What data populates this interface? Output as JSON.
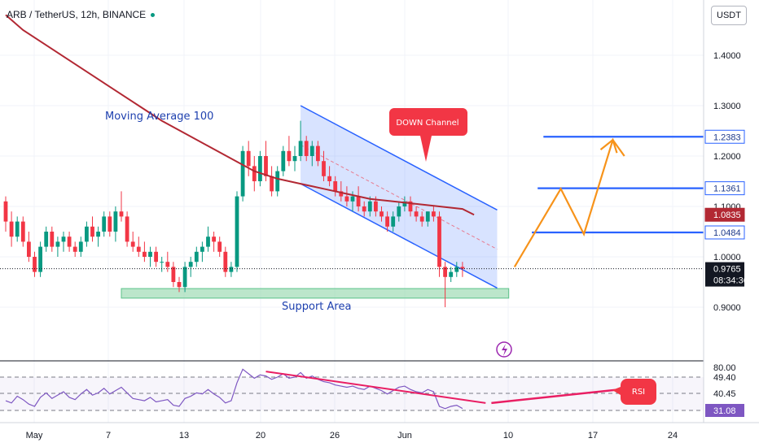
{
  "header": {
    "symbol_line": "ARB / TetherUS, 12h, BINANCE",
    "currency": "USDT"
  },
  "colors": {
    "up": "#089981",
    "down": "#f23645",
    "ma": "#b22833",
    "channel": "#2962ff",
    "level": "#2962ff",
    "projection": "#f7931a",
    "support": "#8fd6a8",
    "rsi": "#7e57c2",
    "divergence": "#e91e63"
  },
  "chart_data": {
    "type": "candlestick",
    "title": "ARB / TetherUS, 12h, BINANCE",
    "y_axis": {
      "ticks": [
        1.4,
        1.3,
        1.2,
        1.1,
        1.0,
        0.9
      ],
      "tick_labels": [
        "1.4000",
        "1.3000",
        "1.2000",
        "1.1000",
        "1.0000",
        "0.9000"
      ],
      "range": [
        0.85,
        1.48
      ]
    },
    "x_axis": {
      "tick_labels": [
        "May",
        "7",
        "13",
        "20",
        "26",
        "Jun",
        "10",
        "17",
        "24"
      ]
    },
    "candles": [
      {
        "o": 1.11,
        "h": 1.12,
        "l": 1.05,
        "c": 1.07
      },
      {
        "o": 1.07,
        "h": 1.09,
        "l": 1.02,
        "c": 1.04
      },
      {
        "o": 1.04,
        "h": 1.08,
        "l": 1.03,
        "c": 1.07
      },
      {
        "o": 1.07,
        "h": 1.08,
        "l": 1.02,
        "c": 1.03
      },
      {
        "o": 1.03,
        "h": 1.05,
        "l": 0.99,
        "c": 1.0
      },
      {
        "o": 1.0,
        "h": 1.01,
        "l": 0.96,
        "c": 0.97
      },
      {
        "o": 0.97,
        "h": 1.03,
        "l": 0.96,
        "c": 1.02
      },
      {
        "o": 1.02,
        "h": 1.06,
        "l": 1.01,
        "c": 1.05
      },
      {
        "o": 1.05,
        "h": 1.06,
        "l": 1.01,
        "c": 1.02
      },
      {
        "o": 1.02,
        "h": 1.04,
        "l": 1.0,
        "c": 1.03
      },
      {
        "o": 1.03,
        "h": 1.05,
        "l": 1.01,
        "c": 1.04
      },
      {
        "o": 1.04,
        "h": 1.05,
        "l": 1.01,
        "c": 1.02
      },
      {
        "o": 1.02,
        "h": 1.03,
        "l": 1.0,
        "c": 1.01
      },
      {
        "o": 1.01,
        "h": 1.04,
        "l": 1.0,
        "c": 1.03
      },
      {
        "o": 1.03,
        "h": 1.07,
        "l": 1.02,
        "c": 1.06
      },
      {
        "o": 1.06,
        "h": 1.08,
        "l": 1.03,
        "c": 1.04
      },
      {
        "o": 1.04,
        "h": 1.06,
        "l": 1.02,
        "c": 1.05
      },
      {
        "o": 1.05,
        "h": 1.09,
        "l": 1.04,
        "c": 1.08
      },
      {
        "o": 1.08,
        "h": 1.09,
        "l": 1.04,
        "c": 1.05
      },
      {
        "o": 1.05,
        "h": 1.1,
        "l": 1.03,
        "c": 1.09
      },
      {
        "o": 1.09,
        "h": 1.13,
        "l": 1.07,
        "c": 1.08
      },
      {
        "o": 1.08,
        "h": 1.09,
        "l": 1.02,
        "c": 1.03
      },
      {
        "o": 1.03,
        "h": 1.05,
        "l": 1.01,
        "c": 1.02
      },
      {
        "o": 1.02,
        "h": 1.04,
        "l": 1.0,
        "c": 1.01
      },
      {
        "o": 1.01,
        "h": 1.03,
        "l": 0.99,
        "c": 1.0
      },
      {
        "o": 1.0,
        "h": 1.02,
        "l": 0.98,
        "c": 1.01
      },
      {
        "o": 1.01,
        "h": 1.02,
        "l": 0.98,
        "c": 0.99
      },
      {
        "o": 0.99,
        "h": 1.0,
        "l": 0.97,
        "c": 0.99
      },
      {
        "o": 0.99,
        "h": 1.01,
        "l": 0.97,
        "c": 0.98
      },
      {
        "o": 0.98,
        "h": 0.99,
        "l": 0.94,
        "c": 0.95
      },
      {
        "o": 0.95,
        "h": 0.96,
        "l": 0.93,
        "c": 0.94
      },
      {
        "o": 0.94,
        "h": 0.99,
        "l": 0.93,
        "c": 0.98
      },
      {
        "o": 0.98,
        "h": 1.0,
        "l": 0.96,
        "c": 0.99
      },
      {
        "o": 0.99,
        "h": 1.02,
        "l": 0.98,
        "c": 1.01
      },
      {
        "o": 1.01,
        "h": 1.03,
        "l": 0.99,
        "c": 1.02
      },
      {
        "o": 1.02,
        "h": 1.06,
        "l": 1.01,
        "c": 1.04
      },
      {
        "o": 1.04,
        "h": 1.05,
        "l": 1.01,
        "c": 1.03
      },
      {
        "o": 1.03,
        "h": 1.04,
        "l": 1.0,
        "c": 1.01
      },
      {
        "o": 1.01,
        "h": 1.02,
        "l": 0.96,
        "c": 0.97
      },
      {
        "o": 0.97,
        "h": 0.99,
        "l": 0.96,
        "c": 0.98
      },
      {
        "o": 0.98,
        "h": 1.13,
        "l": 0.97,
        "c": 1.12
      },
      {
        "o": 1.12,
        "h": 1.22,
        "l": 1.11,
        "c": 1.21
      },
      {
        "o": 1.21,
        "h": 1.23,
        "l": 1.16,
        "c": 1.18
      },
      {
        "o": 1.18,
        "h": 1.2,
        "l": 1.13,
        "c": 1.15
      },
      {
        "o": 1.15,
        "h": 1.21,
        "l": 1.14,
        "c": 1.2
      },
      {
        "o": 1.2,
        "h": 1.23,
        "l": 1.15,
        "c": 1.16
      },
      {
        "o": 1.16,
        "h": 1.18,
        "l": 1.12,
        "c": 1.13
      },
      {
        "o": 1.13,
        "h": 1.18,
        "l": 1.12,
        "c": 1.17
      },
      {
        "o": 1.17,
        "h": 1.22,
        "l": 1.16,
        "c": 1.21
      },
      {
        "o": 1.21,
        "h": 1.24,
        "l": 1.18,
        "c": 1.19
      },
      {
        "o": 1.19,
        "h": 1.22,
        "l": 1.17,
        "c": 1.2
      },
      {
        "o": 1.2,
        "h": 1.27,
        "l": 1.19,
        "c": 1.23
      },
      {
        "o": 1.23,
        "h": 1.24,
        "l": 1.19,
        "c": 1.2
      },
      {
        "o": 1.2,
        "h": 1.23,
        "l": 1.18,
        "c": 1.22
      },
      {
        "o": 1.22,
        "h": 1.23,
        "l": 1.18,
        "c": 1.19
      },
      {
        "o": 1.19,
        "h": 1.21,
        "l": 1.15,
        "c": 1.16
      },
      {
        "o": 1.16,
        "h": 1.18,
        "l": 1.14,
        "c": 1.15
      },
      {
        "o": 1.15,
        "h": 1.16,
        "l": 1.12,
        "c": 1.13
      },
      {
        "o": 1.13,
        "h": 1.15,
        "l": 1.11,
        "c": 1.12
      },
      {
        "o": 1.12,
        "h": 1.14,
        "l": 1.1,
        "c": 1.11
      },
      {
        "o": 1.11,
        "h": 1.13,
        "l": 1.09,
        "c": 1.12
      },
      {
        "o": 1.12,
        "h": 1.14,
        "l": 1.09,
        "c": 1.1
      },
      {
        "o": 1.1,
        "h": 1.11,
        "l": 1.08,
        "c": 1.09
      },
      {
        "o": 1.09,
        "h": 1.12,
        "l": 1.08,
        "c": 1.11
      },
      {
        "o": 1.11,
        "h": 1.12,
        "l": 1.08,
        "c": 1.09
      },
      {
        "o": 1.09,
        "h": 1.1,
        "l": 1.07,
        "c": 1.08
      },
      {
        "o": 1.08,
        "h": 1.09,
        "l": 1.05,
        "c": 1.06
      },
      {
        "o": 1.06,
        "h": 1.09,
        "l": 1.05,
        "c": 1.08
      },
      {
        "o": 1.08,
        "h": 1.11,
        "l": 1.07,
        "c": 1.1
      },
      {
        "o": 1.1,
        "h": 1.12,
        "l": 1.09,
        "c": 1.11
      },
      {
        "o": 1.11,
        "h": 1.12,
        "l": 1.08,
        "c": 1.09
      },
      {
        "o": 1.09,
        "h": 1.1,
        "l": 1.07,
        "c": 1.08
      },
      {
        "o": 1.08,
        "h": 1.09,
        "l": 1.06,
        "c": 1.07
      },
      {
        "o": 1.07,
        "h": 1.09,
        "l": 1.06,
        "c": 1.09
      },
      {
        "o": 1.09,
        "h": 1.1,
        "l": 1.07,
        "c": 1.08
      },
      {
        "o": 1.08,
        "h": 1.09,
        "l": 0.96,
        "c": 0.98
      },
      {
        "o": 0.98,
        "h": 0.99,
        "l": 0.9,
        "c": 0.96
      },
      {
        "o": 0.96,
        "h": 0.98,
        "l": 0.95,
        "c": 0.97
      },
      {
        "o": 0.97,
        "h": 0.99,
        "l": 0.96,
        "c": 0.98
      },
      {
        "o": 0.98,
        "h": 0.99,
        "l": 0.96,
        "c": 0.9765
      }
    ],
    "moving_average": {
      "name": "Moving Average 100",
      "points": [
        [
          0,
          1.48
        ],
        [
          3,
          1.45
        ],
        [
          7,
          1.42
        ],
        [
          11,
          1.39
        ],
        [
          15,
          1.36
        ],
        [
          19,
          1.33
        ],
        [
          23,
          1.3
        ],
        [
          27,
          1.27
        ],
        [
          31,
          1.245
        ],
        [
          35,
          1.22
        ],
        [
          39,
          1.195
        ],
        [
          43,
          1.17
        ],
        [
          47,
          1.155
        ],
        [
          51,
          1.145
        ],
        [
          55,
          1.135
        ],
        [
          59,
          1.125
        ],
        [
          63,
          1.115
        ],
        [
          67,
          1.11
        ],
        [
          71,
          1.105
        ],
        [
          75,
          1.1
        ],
        [
          79,
          1.095
        ],
        [
          81,
          1.0835
        ]
      ]
    },
    "channel": {
      "label": "DOWN Channel",
      "upper": {
        "from": [
          51,
          1.3
        ],
        "to": [
          85,
          1.093
        ]
      },
      "lower": {
        "from": [
          51,
          1.145
        ],
        "to": [
          85,
          0.938
        ]
      },
      "mid": {
        "from": [
          51,
          1.222
        ],
        "to": [
          85,
          1.015
        ]
      }
    },
    "support_area": {
      "label": "Support Area",
      "from_bar": 20,
      "to_bar": 87,
      "y_low": 0.918,
      "y_high": 0.937
    },
    "levels": [
      {
        "value": 1.2383,
        "label": "1.2383",
        "from_bar": 93
      },
      {
        "value": 1.1361,
        "label": "1.1361",
        "from_bar": 92
      },
      {
        "value": 1.0484,
        "label": "1.0484",
        "from_bar": 91
      }
    ],
    "price_labels": [
      {
        "value": 1.0835,
        "label": "1.0835",
        "color": "#b22833"
      },
      {
        "value": 0.9765,
        "label": "0.9765",
        "color": "#131722",
        "countdown": "08:34:36"
      }
    ],
    "projection": [
      [
        88,
        0.98
      ],
      [
        96,
        1.135
      ],
      [
        100,
        1.045
      ],
      [
        105,
        1.232
      ],
      [
        107,
        1.2
      ]
    ],
    "rsi": {
      "ticks": [
        80.0,
        49.4,
        40.45,
        31.08
      ],
      "tick_labels": [
        "80.00",
        "49.40",
        "40.45",
        "31.08"
      ],
      "band_high": 49.4,
      "band_low": 31.08,
      "label": "RSI",
      "values": [
        38,
        36,
        42,
        39,
        35,
        33,
        41,
        45,
        40,
        43,
        46,
        41,
        39,
        44,
        48,
        43,
        45,
        49,
        44,
        47,
        50,
        45,
        40,
        39,
        38,
        41,
        37,
        38,
        39,
        34,
        33,
        40,
        42,
        45,
        44,
        48,
        44,
        41,
        36,
        38,
        54,
        66,
        62,
        58,
        61,
        60,
        57,
        59,
        62,
        58,
        59,
        63,
        58,
        60,
        57,
        55,
        54,
        52,
        51,
        50,
        51,
        49,
        48,
        51,
        49,
        47,
        44,
        47,
        50,
        51,
        48,
        46,
        45,
        48,
        46,
        33,
        31,
        33,
        34,
        31.08
      ],
      "divergence": {
        "from": [
          45,
          64
        ],
        "to": [
          83,
          36
        ]
      },
      "projection_line": {
        "from": [
          84,
          36
        ],
        "to": [
          106,
          50
        ]
      }
    }
  }
}
